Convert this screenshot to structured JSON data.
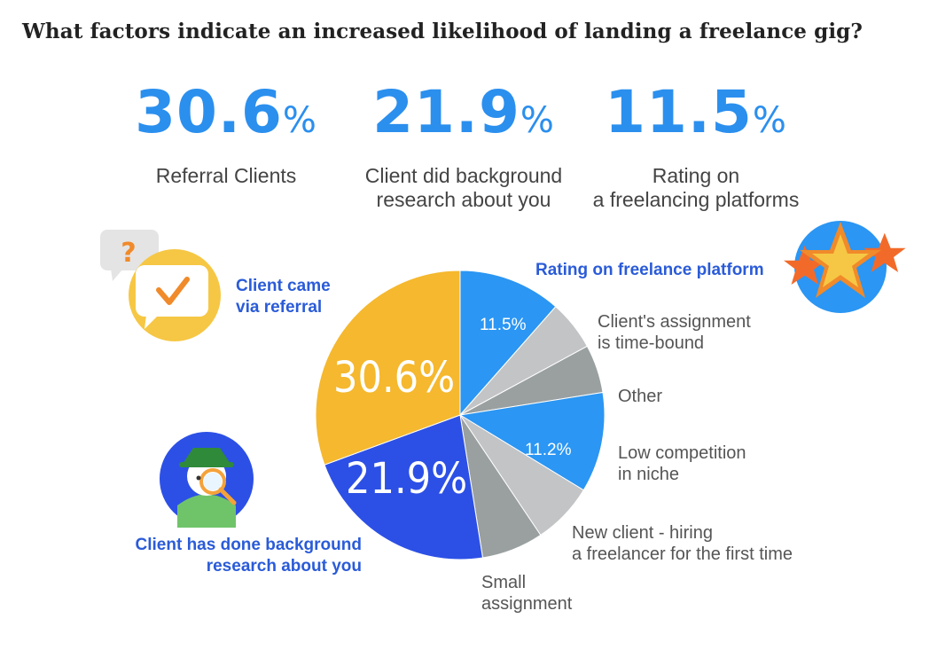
{
  "title": "What factors indicate an increased likelihood of landing a freelance gig?",
  "stats": [
    {
      "number": "30.6",
      "unit": "%",
      "label_line1": "Referral Clients",
      "label_line2": ""
    },
    {
      "number": "21.9",
      "unit": "%",
      "label_line1": "Client did background",
      "label_line2": "research about you"
    },
    {
      "number": "11.5",
      "unit": "%",
      "label_line1": "Rating on",
      "label_line2": "a freelancing platforms"
    }
  ],
  "callouts": {
    "referral_line1": "Client came",
    "referral_line2": "via referral",
    "rating": "Rating on freelance platform",
    "time_bound_line1": "Client's assignment",
    "time_bound_line2": "is time-bound",
    "other": "Other",
    "low_comp_line1": "Low competition",
    "low_comp_line2": "in niche",
    "new_client_line1": "New client - hiring",
    "new_client_line2": "a freelancer for the first time",
    "small_line1": "Small",
    "small_line2": "assignment",
    "background_line1": "Client has done background",
    "background_line2": "research about you"
  },
  "colors": {
    "yellow": "#f5b82e",
    "blue_light": "#2b96f3",
    "blue_dark": "#2c50e6",
    "gray_light": "#c3c4c6",
    "gray_dark": "#9aa0a0",
    "stat_blue": "#2b8fee",
    "callout_blue": "#2a5bd8"
  },
  "chart_data": {
    "type": "pie",
    "title": "",
    "slices": [
      {
        "label": "Rating on freelance platform",
        "value": 11.5,
        "data_label": "11.5%",
        "color": "#2b96f3"
      },
      {
        "label": "Client's assignment is time-bound",
        "value": 5.6,
        "data_label": "",
        "color": "#c3c4c6"
      },
      {
        "label": "Other",
        "value": 5.4,
        "data_label": "",
        "color": "#9aa0a0"
      },
      {
        "label": "Low competition in niche",
        "value": 11.2,
        "data_label": "11.2%",
        "color": "#2b96f3"
      },
      {
        "label": "New client - hiring a freelancer for the first time",
        "value": 6.9,
        "data_label": "",
        "color": "#c3c4c6"
      },
      {
        "label": "Small assignment",
        "value": 6.9,
        "data_label": "",
        "color": "#9aa0a0"
      },
      {
        "label": "Client has done background research about you",
        "value": 21.9,
        "data_label": "21.9%",
        "color": "#2c50e6"
      },
      {
        "label": "Client came via referral",
        "value": 30.6,
        "data_label": "30.6%",
        "color": "#f5b82e"
      }
    ]
  }
}
